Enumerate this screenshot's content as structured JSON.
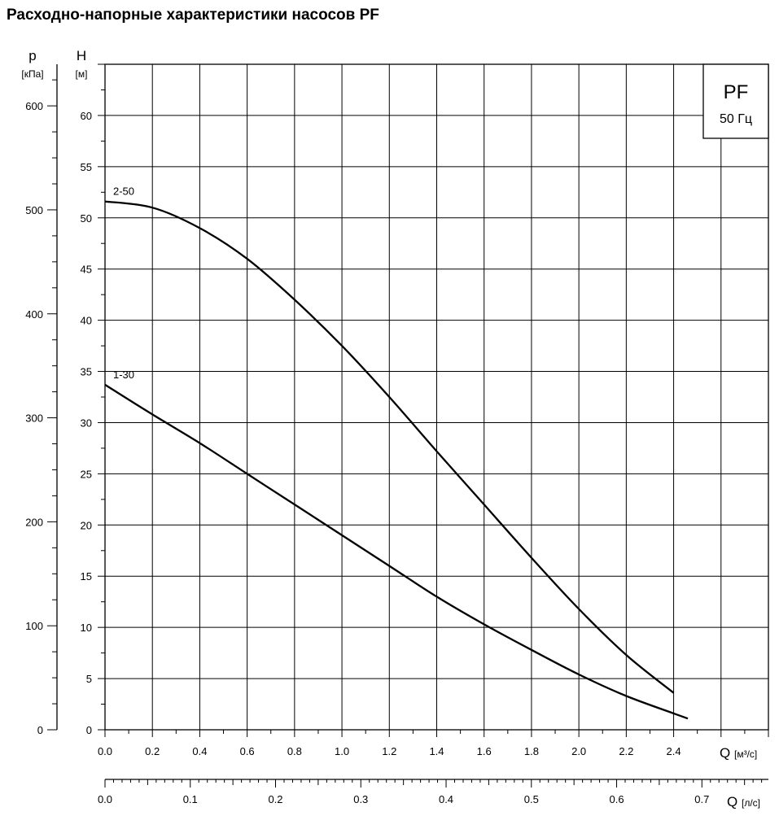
{
  "title": "Расходно-напорные характеристики насосов PF",
  "chart_data": {
    "type": "line",
    "title": "Расходно-напорные характеристики насосов PF",
    "badge": {
      "model": "PF",
      "frequency": "50 Гц"
    },
    "x_axis": {
      "symbol": "Q",
      "unit": "[м³/с]",
      "range": [
        0,
        2.8
      ],
      "ticks": [
        "0.0",
        "0.2",
        "0.4",
        "0.6",
        "0.8",
        "1.0",
        "1.2",
        "1.4",
        "1.6",
        "1.8",
        "2.0",
        "2.2",
        "2.4"
      ],
      "tick_values": [
        0,
        0.2,
        0.4,
        0.6,
        0.8,
        1.0,
        1.2,
        1.4,
        1.6,
        1.8,
        2.0,
        2.2,
        2.4
      ]
    },
    "x2_axis": {
      "symbol": "Q",
      "unit": "[л/с]",
      "range": [
        0,
        0.778
      ],
      "ticks": [
        "0.0",
        "0.1",
        "0.2",
        "0.3",
        "0.4",
        "0.5",
        "0.6",
        "0.7"
      ],
      "tick_values": [
        0,
        0.1,
        0.2,
        0.3,
        0.4,
        0.5,
        0.6,
        0.7
      ]
    },
    "y_axis": {
      "symbol": "H",
      "unit": "[м]",
      "range": [
        0,
        65
      ],
      "ticks": [
        "0",
        "5",
        "10",
        "15",
        "20",
        "25",
        "30",
        "35",
        "40",
        "45",
        "50",
        "55",
        "60"
      ],
      "tick_values": [
        0,
        5,
        10,
        15,
        20,
        25,
        30,
        35,
        40,
        45,
        50,
        55,
        60
      ]
    },
    "y2_axis": {
      "symbol": "p",
      "unit": "[кПа]",
      "ticks": [
        "0",
        "100",
        "200",
        "300",
        "400",
        "500",
        "600"
      ],
      "tick_values": [
        0,
        100,
        200,
        300,
        400,
        500,
        600
      ]
    },
    "grid": true,
    "series": [
      {
        "name": "2-50",
        "x": [
          0,
          0.2,
          0.4,
          0.6,
          0.8,
          1.0,
          1.2,
          1.4,
          1.6,
          1.8,
          2.0,
          2.2,
          2.4
        ],
        "y": [
          51.6,
          51.0,
          49.0,
          46.0,
          42.0,
          37.5,
          32.5,
          27.2,
          22.0,
          16.8,
          11.8,
          7.3,
          3.6
        ]
      },
      {
        "name": "1-30",
        "x": [
          0,
          0.2,
          0.4,
          0.6,
          0.8,
          1.0,
          1.2,
          1.4,
          1.6,
          1.8,
          2.0,
          2.2,
          2.4,
          2.46
        ],
        "y": [
          33.7,
          30.8,
          28.0,
          25.0,
          22.0,
          19.0,
          16.0,
          13.0,
          10.3,
          7.8,
          5.4,
          3.3,
          1.6,
          1.1
        ]
      }
    ]
  }
}
